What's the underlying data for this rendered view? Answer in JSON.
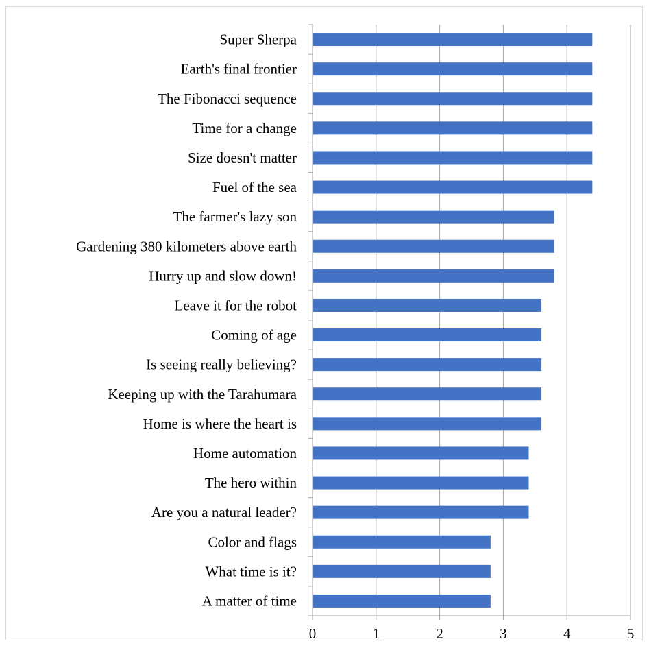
{
  "chart_data": {
    "type": "bar",
    "orientation": "horizontal",
    "categories": [
      "Super Sherpa",
      "Earth's final frontier",
      "The Fibonacci sequence",
      "Time for a change",
      "Size doesn't matter",
      "Fuel of the sea",
      "The farmer's lazy son",
      "Gardening 380 kilometers above earth",
      "Hurry up and slow down!",
      "Leave it for the robot",
      "Coming of age",
      "Is seeing really believing?",
      "Keeping up with the Tarahumara",
      "Home is where the heart is",
      "Home automation",
      "The hero within",
      "Are you a natural leader?",
      "Color and flags",
      "What time is it?",
      "A matter of time"
    ],
    "values": [
      4.4,
      4.4,
      4.4,
      4.4,
      4.4,
      4.4,
      3.8,
      3.8,
      3.8,
      3.6,
      3.6,
      3.6,
      3.6,
      3.6,
      3.4,
      3.4,
      3.4,
      2.8,
      2.8,
      2.8
    ],
    "title": "",
    "xlabel": "",
    "ylabel": "",
    "xlim": [
      0,
      5
    ],
    "ticks": [
      "0",
      "1",
      "2",
      "3",
      "4",
      "5"
    ],
    "grid": "vertical",
    "legend": "none",
    "bar_color": "#4472C4",
    "grid_color": "#a6a6a6",
    "axis_color": "#a6a6a6"
  }
}
